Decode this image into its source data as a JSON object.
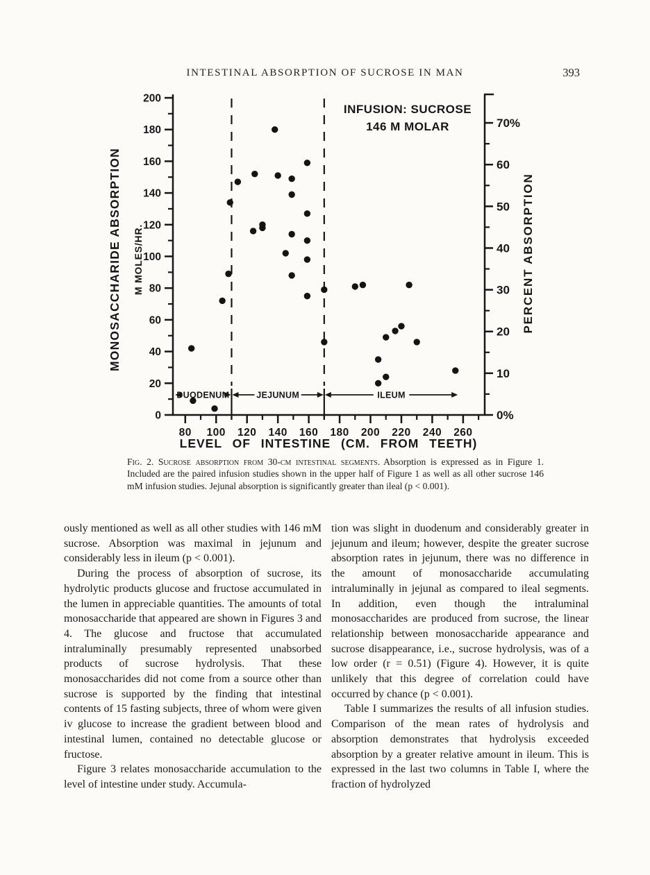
{
  "page": {
    "running_title": "INTESTINAL ABSORPTION OF SUCROSE IN MAN",
    "number": "393"
  },
  "figure": {
    "caption_lead": "Fig. 2. Sucrose absorption from 30-cm intestinal segments.",
    "caption_body": "Absorption is expressed as in Figure 1. Included are the paired infusion studies shown in the upper half of Figure 1 as well as all other sucrose 146 mM infusion studies. Jejunal absorption is significantly greater than ileal (p < 0.001)."
  },
  "chart_data": {
    "type": "scatter",
    "legend": [
      "INFUSION: SUCROSE",
      "146 M MOLAR"
    ],
    "xlabel": "LEVEL OF INTESTINE (CM. FROM TEETH)",
    "ylabel_left_line1": "MONOSACCHARIDE ABSORPTION",
    "ylabel_left_line2": "M MOLES/HR.",
    "ylabel_right": "PERCENT ABSORPTION",
    "xlim": [
      72,
      274
    ],
    "ylim_left": [
      0,
      200
    ],
    "ylim_right_percent": [
      0,
      76
    ],
    "x_ticks_major": [
      80,
      100,
      120,
      140,
      160,
      180,
      200,
      220,
      240,
      260
    ],
    "x_ticks_minor": [
      90,
      110,
      130,
      150,
      170,
      190,
      210,
      230,
      250,
      270
    ],
    "y_left_ticks_major": [
      0,
      20,
      40,
      60,
      80,
      100,
      120,
      140,
      160,
      180,
      200
    ],
    "y_left_ticks_minor": [
      10,
      30,
      50,
      70,
      90,
      110,
      130,
      150,
      170,
      190
    ],
    "y_right_ticks_major": [
      {
        "v": 0,
        "label": "0%"
      },
      {
        "v": 10,
        "label": "10"
      },
      {
        "v": 20,
        "label": "20"
      },
      {
        "v": 30,
        "label": "30"
      },
      {
        "v": 40,
        "label": "40"
      },
      {
        "v": 50,
        "label": "50"
      },
      {
        "v": 60,
        "label": "60"
      },
      {
        "v": 70,
        "label": "70%"
      }
    ],
    "y_right_ticks_minor": [
      5,
      15,
      25,
      35,
      45,
      55,
      65
    ],
    "region_dividers_cm": [
      110,
      170
    ],
    "regions": [
      {
        "label": "DUODENUM",
        "from": 73,
        "to": 110
      },
      {
        "label": "JEJUNUM",
        "from": 110,
        "to": 170
      },
      {
        "label": "ILEUM",
        "from": 170,
        "to": 257
      }
    ],
    "points_cm_vs_mmoles_hr": [
      [
        84,
        42
      ],
      [
        85,
        9
      ],
      [
        99,
        4
      ],
      [
        104,
        72
      ],
      [
        108,
        89
      ],
      [
        109,
        134
      ],
      [
        114,
        147
      ],
      [
        125,
        152
      ],
      [
        124,
        116
      ],
      [
        130,
        120
      ],
      [
        130,
        118
      ],
      [
        138,
        180
      ],
      [
        140,
        151
      ],
      [
        149,
        149
      ],
      [
        149,
        139
      ],
      [
        149,
        114
      ],
      [
        145,
        102
      ],
      [
        159,
        159
      ],
      [
        159,
        127
      ],
      [
        159,
        110
      ],
      [
        159,
        98
      ],
      [
        149,
        88
      ],
      [
        159,
        75
      ],
      [
        170,
        79
      ],
      [
        170,
        46
      ],
      [
        190,
        81
      ],
      [
        195,
        82
      ],
      [
        225,
        82
      ],
      [
        220,
        56
      ],
      [
        216,
        53
      ],
      [
        210,
        49
      ],
      [
        230,
        46
      ],
      [
        205,
        35
      ],
      [
        210,
        24
      ],
      [
        205,
        20
      ],
      [
        255,
        28
      ]
    ]
  },
  "body": {
    "left": [
      {
        "text": "ously mentioned as well as all other studies with 146 mM sucrose. Absorption was maximal in jejunum and considerably less in ileum (p < 0.001)."
      },
      {
        "text": "During the process of absorption of sucrose, its hydrolytic products glucose and fructose accumulated in the lumen in appreciable quantities. The amounts of total monosaccharide that appeared are shown in Figures 3 and 4. The glucose and fructose that accumulated intraluminally presumably represented unabsorbed products of sucrose hydrolysis. That these monosaccharides did not come from a source other than sucrose is supported by the finding that intestinal contents of 15 fasting subjects, three of whom were given iv glucose to increase the gradient between blood and intestinal lumen, contained no detectable glucose or fructose."
      },
      {
        "text": "Figure 3 relates monosaccharide accumulation to the level of intestine under study. Accumula-"
      }
    ],
    "right": [
      {
        "text": "tion was slight in duodenum and considerably greater in jejunum and ileum; however, despite the greater sucrose absorption rates in jejunum, there was no difference in the amount of monosaccharide accumulating intraluminally in jejunal as compared to ileal segments. In addition, even though the intraluminal monosaccharides are produced from sucrose, the linear relationship between monosaccharide appearance and sucrose disappearance, i.e., sucrose hydrolysis, was of a low order (r = 0.51) (Figure 4). However, it is quite unlikely that this degree of correlation could have occurred by chance (p < 0.001)."
      },
      {
        "text": "Table I summarizes the results of all infusion studies. Comparison of the mean rates of hydrolysis and absorption demonstrates that hydrolysis exceeded absorption by a greater relative amount in ileum. This is expressed in the last two columns in Table I, where the fraction of hydrolyzed"
      }
    ]
  }
}
